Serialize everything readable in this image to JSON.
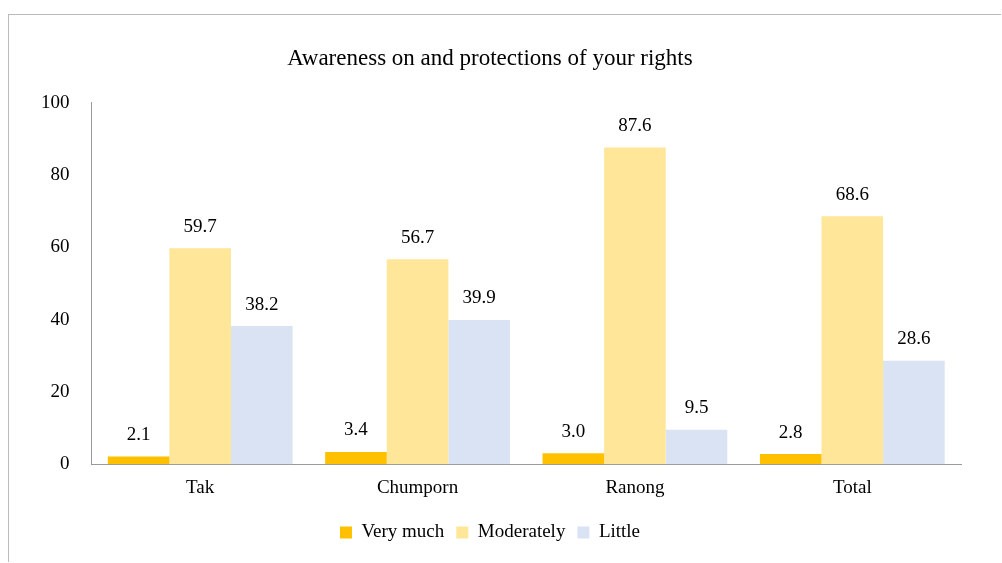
{
  "chart_data": {
    "type": "bar",
    "title": "Awareness on and protections of your rights",
    "categories": [
      "Tak",
      "Chumporn",
      "Ranong",
      "Total"
    ],
    "series": [
      {
        "name": "Very much",
        "color": "#ffc000",
        "values": [
          2.1,
          3.4,
          3.0,
          2.8
        ],
        "value_labels": [
          "2.1",
          "3.4",
          "3.0",
          "2.8"
        ]
      },
      {
        "name": "Moderately",
        "color": "#ffe699",
        "values": [
          59.7,
          56.7,
          87.6,
          68.6
        ],
        "value_labels": [
          "59.7",
          "56.7",
          "87.6",
          "68.6"
        ]
      },
      {
        "name": "Little",
        "color": "#dae3f3",
        "values": [
          38.2,
          39.9,
          9.5,
          28.6
        ],
        "value_labels": [
          "38.2",
          "39.9",
          "9.5",
          "28.6"
        ]
      }
    ],
    "ylim": [
      0,
      100
    ],
    "yticks": [
      0,
      20,
      40,
      60,
      80,
      100
    ],
    "grid": false,
    "legend": "bottom"
  }
}
